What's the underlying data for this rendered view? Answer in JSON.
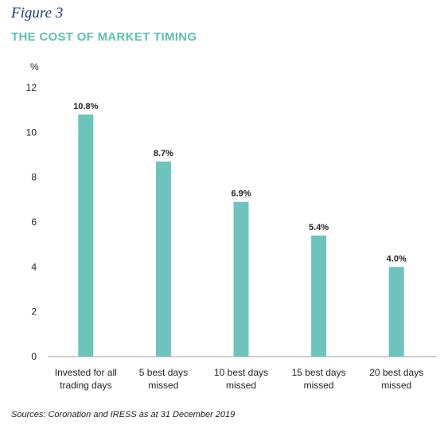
{
  "figure_label": "Figure 3",
  "source": "Sources: Coronation and IRESS as at 31 December 2019",
  "colors": {
    "bar": "#6cc4bd",
    "title": "#5cbfb5",
    "figure_label": "#1f3a7a"
  },
  "chart_data": {
    "type": "bar",
    "title": "THE COST OF MARKET TIMING",
    "ylabel": "%",
    "xlabel": "",
    "ylim": [
      0,
      12
    ],
    "yticks": [
      "0",
      "2",
      "4",
      "6",
      "8",
      "10",
      "12"
    ],
    "grid": false,
    "categories": [
      [
        "Invested for all",
        "trading days"
      ],
      [
        "5 best days",
        "missed"
      ],
      [
        "10 best days",
        "missed"
      ],
      [
        "15 best days",
        "missed"
      ],
      [
        "20 best days",
        "missed"
      ]
    ],
    "values": [
      10.8,
      8.7,
      6.9,
      5.4,
      4.0
    ],
    "value_labels": [
      "10.8%",
      "8.7%",
      "6.9%",
      "5.4%",
      "4.0%"
    ]
  }
}
